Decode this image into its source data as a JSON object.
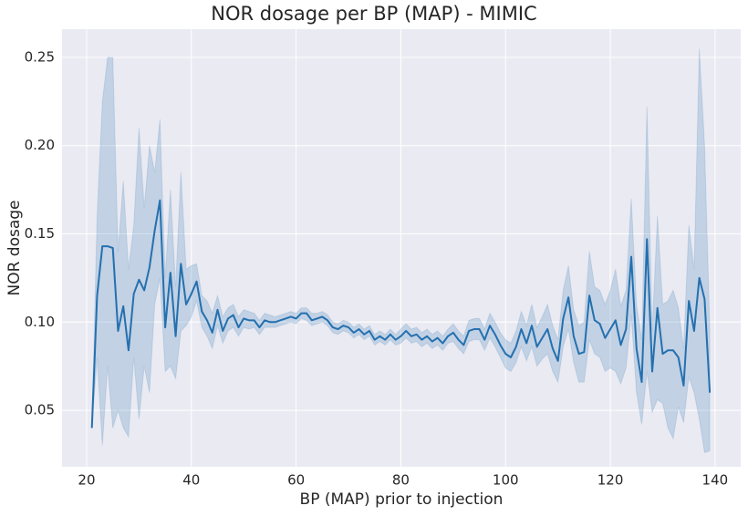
{
  "chart_data": {
    "type": "line",
    "title": "NOR dosage per BP (MAP) - MIMIC",
    "xlabel": "BP (MAP) prior to injection",
    "ylabel": "NOR dosage",
    "x": [
      21,
      22,
      23,
      24,
      25,
      26,
      27,
      28,
      29,
      30,
      31,
      32,
      33,
      34,
      35,
      36,
      37,
      38,
      39,
      40,
      41,
      42,
      43,
      44,
      45,
      46,
      47,
      48,
      49,
      50,
      51,
      52,
      53,
      54,
      55,
      56,
      57,
      58,
      59,
      60,
      61,
      62,
      63,
      64,
      65,
      66,
      67,
      68,
      69,
      70,
      71,
      72,
      73,
      74,
      75,
      76,
      77,
      78,
      79,
      80,
      81,
      82,
      83,
      84,
      85,
      86,
      87,
      88,
      89,
      90,
      91,
      92,
      93,
      94,
      95,
      96,
      97,
      98,
      99,
      100,
      101,
      102,
      103,
      104,
      105,
      106,
      107,
      108,
      109,
      110,
      111,
      112,
      113,
      114,
      115,
      116,
      117,
      118,
      119,
      120,
      121,
      122,
      123,
      124,
      125,
      126,
      127,
      128,
      129,
      130,
      131,
      132,
      133,
      134,
      135,
      136,
      137,
      138,
      139
    ],
    "series": [
      {
        "color": "#2470af",
        "values": [
          0.04,
          0.115,
          0.143,
          0.143,
          0.142,
          0.095,
          0.109,
          0.084,
          0.116,
          0.124,
          0.118,
          0.131,
          0.152,
          0.169,
          0.097,
          0.128,
          0.092,
          0.133,
          0.11,
          0.116,
          0.123,
          0.106,
          0.101,
          0.094,
          0.107,
          0.095,
          0.102,
          0.104,
          0.097,
          0.102,
          0.101,
          0.101,
          0.097,
          0.101,
          0.1,
          0.1,
          0.101,
          0.102,
          0.103,
          0.102,
          0.105,
          0.105,
          0.101,
          0.102,
          0.103,
          0.101,
          0.097,
          0.096,
          0.098,
          0.097,
          0.094,
          0.096,
          0.093,
          0.095,
          0.09,
          0.092,
          0.09,
          0.093,
          0.09,
          0.092,
          0.095,
          0.092,
          0.093,
          0.09,
          0.092,
          0.089,
          0.091,
          0.088,
          0.092,
          0.094,
          0.09,
          0.087,
          0.095,
          0.096,
          0.096,
          0.09,
          0.098,
          0.093,
          0.087,
          0.082,
          0.08,
          0.086,
          0.096,
          0.088,
          0.098,
          0.086,
          0.091,
          0.096,
          0.085,
          0.078,
          0.102,
          0.114,
          0.092,
          0.082,
          0.083,
          0.115,
          0.101,
          0.099,
          0.091,
          0.096,
          0.101,
          0.087,
          0.096,
          0.137,
          0.085,
          0.066,
          0.147,
          0.072,
          0.108,
          0.082,
          0.084,
          0.084,
          0.08,
          0.064,
          0.112,
          0.095,
          0.125,
          0.113,
          0.06
        ],
        "upper": [
          0.04,
          0.16,
          0.225,
          0.25,
          0.25,
          0.14,
          0.18,
          0.13,
          0.155,
          0.21,
          0.165,
          0.2,
          0.185,
          0.215,
          0.125,
          0.175,
          0.12,
          0.185,
          0.13,
          0.132,
          0.133,
          0.115,
          0.112,
          0.105,
          0.115,
          0.103,
          0.108,
          0.11,
          0.103,
          0.107,
          0.106,
          0.105,
          0.101,
          0.105,
          0.104,
          0.103,
          0.104,
          0.105,
          0.106,
          0.105,
          0.108,
          0.108,
          0.105,
          0.105,
          0.106,
          0.104,
          0.1,
          0.099,
          0.101,
          0.1,
          0.097,
          0.099,
          0.096,
          0.098,
          0.093,
          0.095,
          0.093,
          0.096,
          0.093,
          0.096,
          0.099,
          0.096,
          0.097,
          0.094,
          0.096,
          0.093,
          0.095,
          0.092,
          0.096,
          0.099,
          0.095,
          0.092,
          0.101,
          0.102,
          0.102,
          0.096,
          0.105,
          0.1,
          0.094,
          0.09,
          0.088,
          0.095,
          0.106,
          0.098,
          0.11,
          0.097,
          0.103,
          0.11,
          0.098,
          0.09,
          0.118,
          0.132,
          0.107,
          0.098,
          0.1,
          0.14,
          0.12,
          0.118,
          0.11,
          0.118,
          0.13,
          0.109,
          0.118,
          0.17,
          0.11,
          0.09,
          0.222,
          0.095,
          0.16,
          0.11,
          0.112,
          0.118,
          0.108,
          0.085,
          0.155,
          0.13,
          0.255,
          0.2,
          0.095
        ],
        "lower": [
          0.04,
          0.08,
          0.03,
          0.075,
          0.04,
          0.05,
          0.04,
          0.035,
          0.08,
          0.045,
          0.075,
          0.06,
          0.11,
          0.125,
          0.072,
          0.075,
          0.068,
          0.095,
          0.098,
          0.103,
          0.112,
          0.097,
          0.092,
          0.085,
          0.098,
          0.088,
          0.095,
          0.097,
          0.092,
          0.097,
          0.096,
          0.097,
          0.093,
          0.097,
          0.097,
          0.097,
          0.098,
          0.099,
          0.1,
          0.099,
          0.102,
          0.101,
          0.098,
          0.099,
          0.1,
          0.098,
          0.094,
          0.093,
          0.095,
          0.094,
          0.091,
          0.093,
          0.09,
          0.092,
          0.087,
          0.089,
          0.087,
          0.09,
          0.087,
          0.088,
          0.091,
          0.088,
          0.089,
          0.086,
          0.088,
          0.085,
          0.087,
          0.084,
          0.088,
          0.089,
          0.085,
          0.082,
          0.089,
          0.09,
          0.09,
          0.084,
          0.091,
          0.086,
          0.08,
          0.074,
          0.072,
          0.077,
          0.086,
          0.078,
          0.086,
          0.075,
          0.079,
          0.082,
          0.072,
          0.066,
          0.086,
          0.096,
          0.077,
          0.066,
          0.066,
          0.09,
          0.082,
          0.08,
          0.072,
          0.074,
          0.072,
          0.065,
          0.074,
          0.104,
          0.06,
          0.042,
          0.072,
          0.049,
          0.056,
          0.054,
          0.04,
          0.034,
          0.052,
          0.043,
          0.069,
          0.06,
          0.045,
          0.026,
          0.027
        ]
      }
    ],
    "xlim": [
      15.3,
      144.9
    ],
    "ylim": [
      0.018,
      0.266
    ],
    "xticks": [
      20,
      40,
      60,
      80,
      100,
      120,
      140
    ],
    "yticks": [
      0.05,
      {
        "value": 0.1,
        "label": "0.10"
      },
      0.15,
      {
        "value": 0.2,
        "label": "0.20"
      },
      0.25
    ],
    "grid": true
  }
}
